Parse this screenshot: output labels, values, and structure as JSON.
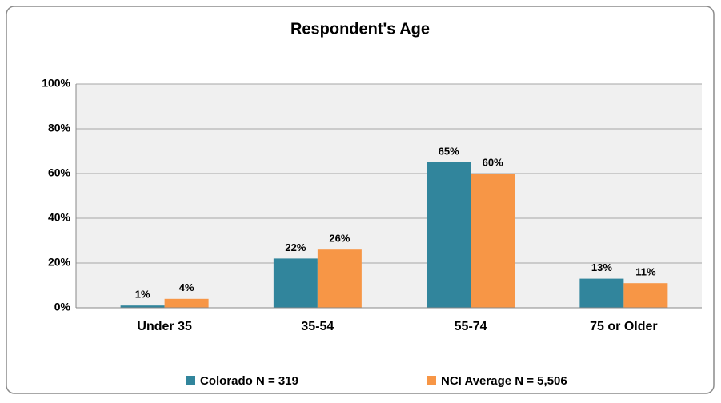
{
  "chart_data": {
    "type": "bar",
    "title": "Respondent's Age",
    "categories": [
      "Under 35",
      "35-54",
      "55-74",
      "75 or Older"
    ],
    "series": [
      {
        "name": "Colorado N = 319",
        "color": "#31859c",
        "values": [
          1,
          22,
          65,
          13
        ],
        "value_labels": [
          "1%",
          "22%",
          "65%",
          "13%"
        ]
      },
      {
        "name": "NCI Average N = 5,506",
        "color": "#f79646",
        "values": [
          4,
          26,
          60,
          11
        ],
        "value_labels": [
          "4%",
          "26%",
          "60%",
          "11%"
        ]
      }
    ],
    "ylim": [
      0,
      100
    ],
    "yticks": [
      {
        "value": 0,
        "label": "0%"
      },
      {
        "value": 20,
        "label": "20%"
      },
      {
        "value": 40,
        "label": "40%"
      },
      {
        "value": 60,
        "label": "60%"
      },
      {
        "value": 80,
        "label": "80%"
      },
      {
        "value": 100,
        "label": "100%"
      }
    ],
    "grid": true,
    "legend": "bottom"
  }
}
